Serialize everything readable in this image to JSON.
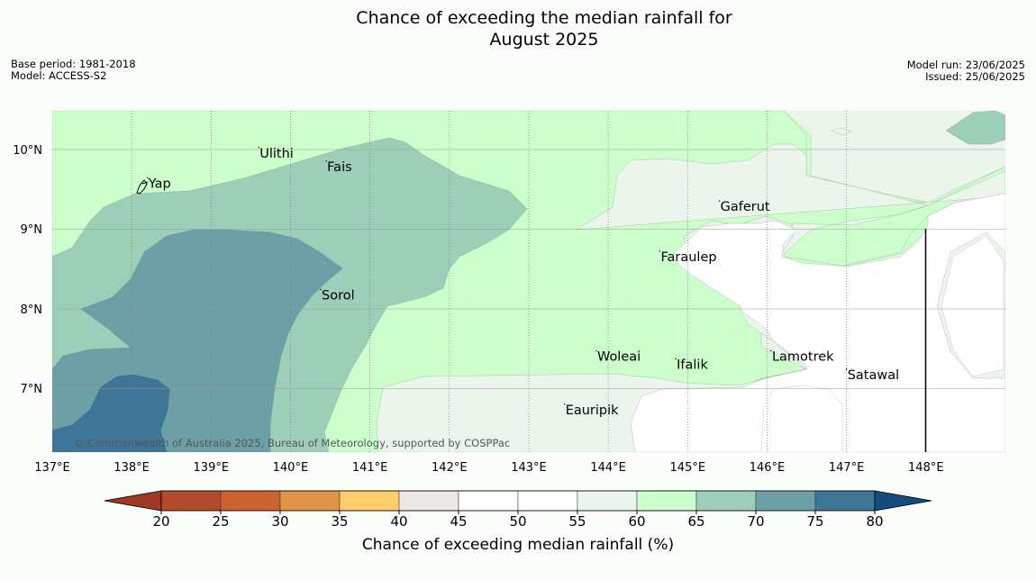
{
  "title_line1": "Chance of exceeding the median rainfall for",
  "title_line2": "August 2025",
  "meta_left": {
    "base_period": "Base period: 1981-2018",
    "model": "Model: ACCESS-S2"
  },
  "meta_right": {
    "model_run": "Model run: 23/06/2025",
    "issued": "Issued: 25/06/2025"
  },
  "x_ticks": [
    "137°E",
    "138°E",
    "139°E",
    "140°E",
    "141°E",
    "142°E",
    "143°E",
    "144°E",
    "145°E",
    "146°E",
    "147°E",
    "148°E"
  ],
  "y_ticks": [
    "10°N",
    "9°N",
    "8°N",
    "7°N"
  ],
  "places": [
    {
      "name": "Yap",
      "lon": 138.2,
      "lat": 9.52
    },
    {
      "name": "Ulithi",
      "lon": 139.6,
      "lat": 9.9
    },
    {
      "name": "Fais",
      "lon": 140.45,
      "lat": 9.73
    },
    {
      "name": "Gaferut",
      "lon": 145.4,
      "lat": 9.23
    },
    {
      "name": "Faraulep",
      "lon": 144.65,
      "lat": 8.6
    },
    {
      "name": "Sorol",
      "lon": 140.38,
      "lat": 8.12
    },
    {
      "name": "Lamotrek",
      "lon": 146.05,
      "lat": 7.35
    },
    {
      "name": "Woleai",
      "lon": 143.85,
      "lat": 7.35
    },
    {
      "name": "Ifalik",
      "lon": 144.85,
      "lat": 7.25
    },
    {
      "name": "Satawal",
      "lon": 147.0,
      "lat": 7.12
    },
    {
      "name": "Eauripik",
      "lon": 143.45,
      "lat": 6.68
    }
  ],
  "copyright": "© Commonwealth of Australia 2025, Bureau of Meteorology, supported by COSPPac",
  "colorbar": {
    "title": "Chance of exceeding median rainfall (%)",
    "ticks": [
      "20",
      "25",
      "30",
      "35",
      "40",
      "45",
      "50",
      "55",
      "60",
      "65",
      "70",
      "75",
      "80"
    ],
    "colors": [
      "#b44a2a",
      "#cd6230",
      "#e09347",
      "#fdcd6a",
      "#ece8e3",
      "#ffffff",
      "#ffffff",
      "#ecf5ec",
      "#ccffcc",
      "#9dcfb8",
      "#6da0a6",
      "#3f7697"
    ],
    "low_extend_color": "#9e3a23",
    "high_extend_color": "#154c7f"
  },
  "legend_colors": {
    "c55_60": "#ecf5ec",
    "c60_65": "#ccffcc",
    "c65_70": "#9dcfb8",
    "c70_75": "#6da0a6",
    "c75_80": "#3f7697",
    "c80_plus": "#154c7f"
  }
}
